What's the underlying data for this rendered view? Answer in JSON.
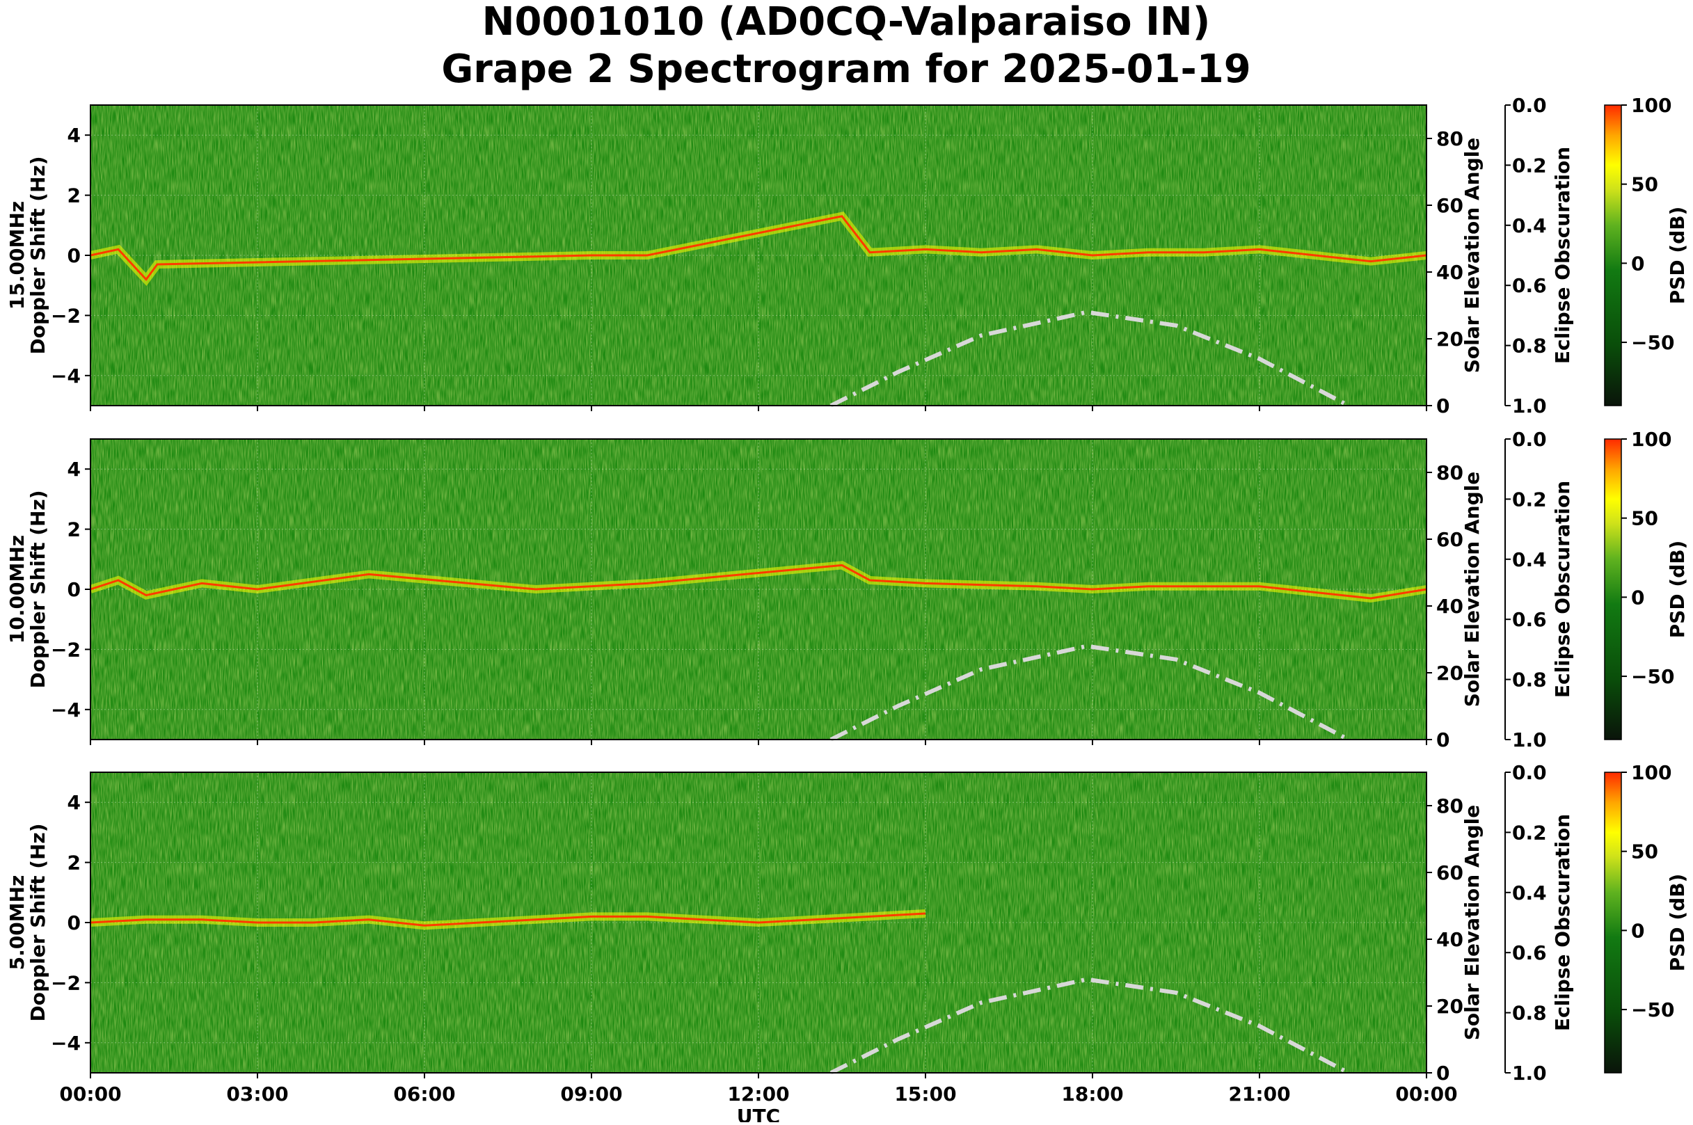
{
  "figure": {
    "title_line1": "N0001010 (AD0CQ-Valparaiso IN)",
    "title_line2": "Grape 2 Spectrogram for 2025-01-19"
  },
  "chart_data": [
    {
      "type": "heatmap",
      "frequency_label": "15.00MHz",
      "ylabel": "Doppler Shift (Hz)",
      "ylim": [
        -5,
        5
      ],
      "yticks": [
        -4,
        -2,
        0,
        2,
        4
      ],
      "x_categories": [
        "00:00",
        "03:00",
        "06:00",
        "09:00",
        "12:00",
        "15:00",
        "18:00",
        "21:00",
        "00:00"
      ],
      "xlim_hours": [
        0,
        24
      ],
      "right_axis_label": "Solar Elevation Angle",
      "right_axis_ticks": [
        0,
        20,
        40,
        60,
        80
      ],
      "eclipse_label": "Eclipse Obscuration",
      "eclipse_ticks": [
        "0.0",
        "0.2",
        "0.4",
        "0.6",
        "0.8",
        "1.0"
      ],
      "colorbar_label": "PSD (dB)",
      "colorbar_ticks": [
        100,
        50,
        0,
        -50
      ],
      "colorbar_range": [
        -90,
        100
      ],
      "solar_elevation_curve": {
        "x_hours": [
          13.3,
          14.5,
          16,
          17.9,
          19.5,
          21,
          22.6
        ],
        "y_deg": [
          0,
          10,
          21,
          28,
          24,
          14,
          0
        ]
      },
      "doppler_trace": {
        "x_hours": [
          0,
          0.5,
          1,
          1.2,
          9,
          10,
          13.5,
          14,
          15,
          16,
          17,
          18,
          19,
          20,
          21,
          22,
          23,
          24
        ],
        "y_hz": [
          0,
          0.2,
          -0.8,
          -0.3,
          0,
          0,
          1.3,
          0.1,
          0.2,
          0.1,
          0.2,
          0,
          0.1,
          0.1,
          0.2,
          0,
          -0.2,
          0
        ]
      }
    },
    {
      "type": "heatmap",
      "frequency_label": "10.00MHz",
      "ylabel": "Doppler Shift (Hz)",
      "ylim": [
        -5,
        5
      ],
      "yticks": [
        -4,
        -2,
        0,
        2,
        4
      ],
      "x_categories": [
        "00:00",
        "03:00",
        "06:00",
        "09:00",
        "12:00",
        "15:00",
        "18:00",
        "21:00",
        "00:00"
      ],
      "xlim_hours": [
        0,
        24
      ],
      "right_axis_label": "Solar Elevation Angle",
      "right_axis_ticks": [
        0,
        20,
        40,
        60,
        80
      ],
      "eclipse_label": "Eclipse Obscuration",
      "eclipse_ticks": [
        "0.0",
        "0.2",
        "0.4",
        "0.6",
        "0.8",
        "1.0"
      ],
      "colorbar_label": "PSD (dB)",
      "colorbar_ticks": [
        100,
        50,
        0,
        -50
      ],
      "colorbar_range": [
        -90,
        100
      ],
      "solar_elevation_curve": {
        "x_hours": [
          13.3,
          14.5,
          16,
          17.9,
          19.5,
          21,
          22.6
        ],
        "y_deg": [
          0,
          10,
          21,
          28,
          24,
          14,
          0
        ]
      },
      "doppler_trace": {
        "x_hours": [
          0,
          0.5,
          1,
          2,
          3,
          5,
          8,
          10,
          13.5,
          14,
          15,
          17,
          18,
          19,
          21,
          23,
          24
        ],
        "y_hz": [
          0,
          0.3,
          -0.2,
          0.2,
          0,
          0.5,
          0,
          0.2,
          0.8,
          0.3,
          0.2,
          0.1,
          0,
          0.1,
          0.1,
          -0.3,
          0
        ]
      }
    },
    {
      "type": "heatmap",
      "frequency_label": "5.00MHz",
      "ylabel": "Doppler Shift (Hz)",
      "xlabel": "UTC",
      "ylim": [
        -5,
        5
      ],
      "yticks": [
        -4,
        -2,
        0,
        2,
        4
      ],
      "x_categories": [
        "00:00",
        "03:00",
        "06:00",
        "09:00",
        "12:00",
        "15:00",
        "18:00",
        "21:00",
        "00:00"
      ],
      "xlim_hours": [
        0,
        24
      ],
      "right_axis_label": "Solar Elevation Angle",
      "right_axis_ticks": [
        0,
        20,
        40,
        60,
        80
      ],
      "eclipse_label": "Eclipse Obscuration",
      "eclipse_ticks": [
        "0.0",
        "0.2",
        "0.4",
        "0.6",
        "0.8",
        "1.0"
      ],
      "colorbar_label": "PSD (dB)",
      "colorbar_ticks": [
        100,
        50,
        0,
        -50
      ],
      "colorbar_range": [
        -90,
        100
      ],
      "solar_elevation_curve": {
        "x_hours": [
          13.3,
          14.5,
          16,
          17.9,
          19.5,
          21,
          22.6
        ],
        "y_deg": [
          0,
          10,
          21,
          28,
          24,
          14,
          0
        ]
      },
      "doppler_trace": {
        "x_hours": [
          0,
          1,
          2,
          3,
          4,
          5,
          6,
          7,
          8,
          9,
          10,
          11,
          12,
          13,
          14,
          15
        ],
        "y_hz": [
          0,
          0.1,
          0.1,
          0,
          0,
          0.1,
          -0.1,
          0,
          0.1,
          0.2,
          0.2,
          0.1,
          0,
          0.1,
          0.2,
          0.3
        ]
      }
    }
  ],
  "colors": {
    "psd_stops": [
      "#0a140a",
      "#0a4d0a",
      "#127a12",
      "#5fb21f",
      "#cfe21a",
      "#ffff00",
      "#ffa500",
      "#ff2a00"
    ],
    "curve": "#d8d8d8"
  }
}
